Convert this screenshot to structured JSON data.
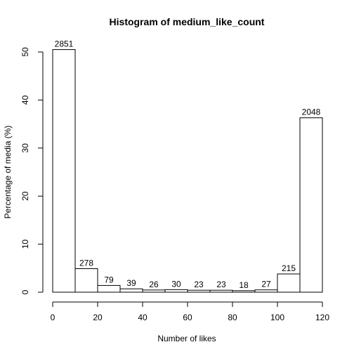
{
  "chart_data": {
    "type": "bar",
    "title": "Histogram of medium_like_count",
    "xlabel": "Number of likes",
    "ylabel": "Percentage of media (%)",
    "xlim": [
      0,
      120
    ],
    "ylim": [
      0,
      50
    ],
    "xticks": [
      0,
      20,
      40,
      60,
      80,
      100,
      120
    ],
    "yticks": [
      0,
      10,
      20,
      30,
      40,
      50
    ],
    "bins": [
      {
        "start": 0,
        "end": 10,
        "percent": 50.5,
        "count_label": "2851"
      },
      {
        "start": 10,
        "end": 20,
        "percent": 4.9,
        "count_label": "278"
      },
      {
        "start": 20,
        "end": 30,
        "percent": 1.4,
        "count_label": "79"
      },
      {
        "start": 30,
        "end": 40,
        "percent": 0.7,
        "count_label": "39"
      },
      {
        "start": 40,
        "end": 50,
        "percent": 0.46,
        "count_label": "26"
      },
      {
        "start": 50,
        "end": 60,
        "percent": 0.53,
        "count_label": "30"
      },
      {
        "start": 60,
        "end": 70,
        "percent": 0.41,
        "count_label": "23"
      },
      {
        "start": 70,
        "end": 80,
        "percent": 0.41,
        "count_label": "23"
      },
      {
        "start": 80,
        "end": 90,
        "percent": 0.32,
        "count_label": "18"
      },
      {
        "start": 90,
        "end": 100,
        "percent": 0.48,
        "count_label": "27"
      },
      {
        "start": 100,
        "end": 110,
        "percent": 3.8,
        "count_label": "215"
      },
      {
        "start": 110,
        "end": 120,
        "percent": 36.3,
        "count_label": "2048"
      }
    ],
    "grid": false,
    "legend": "none"
  }
}
